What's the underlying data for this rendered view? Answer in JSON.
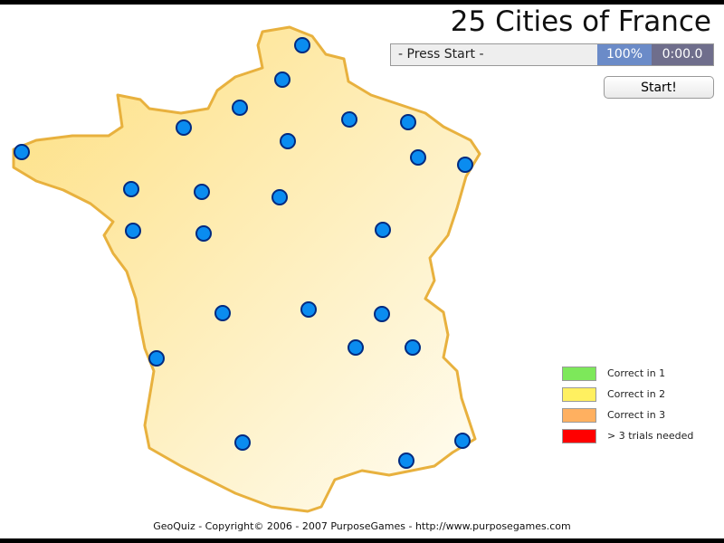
{
  "title": "25 Cities of France",
  "status": {
    "message": "- Press Start -",
    "percent": "100%",
    "time": "0:00.0"
  },
  "start_label": "Start!",
  "legend": [
    {
      "label": "Correct in 1",
      "color": "#7de85a"
    },
    {
      "label": "Correct in 2",
      "color": "#fff060"
    },
    {
      "label": "Correct in 3",
      "color": "#ffb060"
    },
    {
      "label": "> 3 trials needed",
      "color": "#ff0000"
    }
  ],
  "colors": {
    "map_fill": "#fde9a8",
    "map_stroke": "#e8b13e",
    "city_fill": "#0a8cf0",
    "city_stroke": "#002a80"
  },
  "city_count": 25,
  "footer": "GeoQuiz - Copyright© 2006 - 2007 PurposeGames - http://www.purposegames.com"
}
